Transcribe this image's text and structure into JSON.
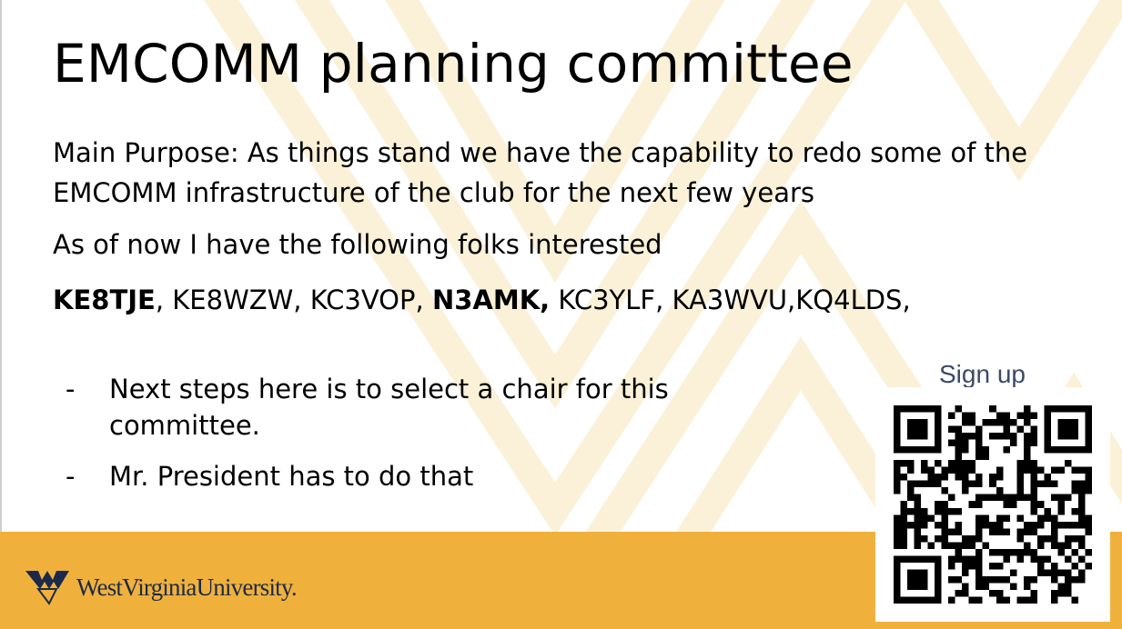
{
  "slide": {
    "title": "EMCOMM planning committee",
    "paragraphs": [
      "Main Purpose: As things stand we have the capability to redo some of the EMCOMM infrastructure of the club for the next few years",
      "As of now I have the following folks interested"
    ],
    "callsigns": [
      {
        "text": "KE8TJE",
        "bold": true
      },
      {
        "text": ", KE8WZW,  KC3VOP,  ",
        "bold": false
      },
      {
        "text": "N3AMK,",
        "bold": true
      },
      {
        "text": " KC3YLF,  KA3WVU,KQ4LDS,",
        "bold": false
      }
    ],
    "bullets": [
      {
        "marker": "-",
        "text": "Next steps here is to select a chair for this committee."
      },
      {
        "marker": "-",
        "text": "Mr. President has to do that"
      }
    ]
  },
  "signup": {
    "label": "Sign up",
    "qr_icon": "qr-code-icon"
  },
  "footer": {
    "logo_icon": "flying-wv-logo-icon",
    "logo_text": "WestVirginiaUniversity.",
    "band_color": "#f0b13c"
  },
  "colors": {
    "gold": "#f0b13c",
    "navy": "#1b2a4a",
    "signup_text": "#3b4a66"
  }
}
